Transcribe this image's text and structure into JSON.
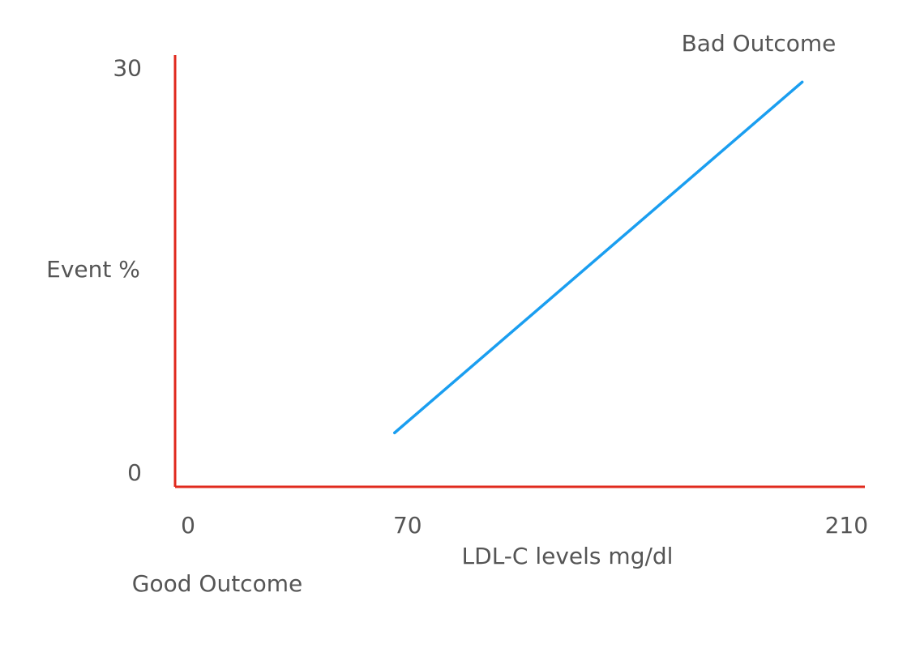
{
  "chart_data": {
    "type": "line",
    "y_label": "Event %",
    "x_label": "LDL-C levels mg/dl",
    "annotations": [
      "Bad Outcome",
      "Good Outcome"
    ],
    "x": [
      70,
      200
    ],
    "values": [
      4,
      30
    ],
    "color": "#1a9ef0",
    "axis_color": "#e0291d",
    "xlim": [
      0,
      220
    ],
    "xticks": [
      0,
      70,
      210
    ],
    "ylim": [
      0,
      32
    ],
    "yticks": [
      0,
      30
    ],
    "grid": false
  }
}
